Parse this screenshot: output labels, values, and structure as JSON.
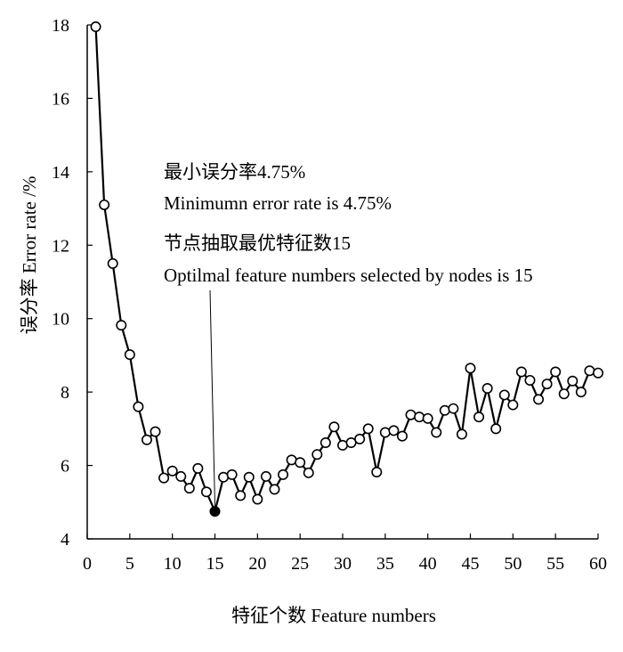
{
  "chart_data": {
    "type": "line",
    "ylabel": "误分率 Error rate /%",
    "xlabel": "特征个数 Feature numbers",
    "xlim": [
      0,
      60
    ],
    "ylim": [
      4,
      18
    ],
    "xticks": [
      0,
      5,
      10,
      15,
      20,
      25,
      30,
      35,
      40,
      45,
      50,
      55,
      60
    ],
    "yticks": [
      4,
      6,
      8,
      10,
      12,
      14,
      16,
      18
    ],
    "grid": false,
    "x": [
      1,
      2,
      3,
      4,
      5,
      6,
      7,
      8,
      9,
      10,
      11,
      12,
      13,
      14,
      15,
      16,
      17,
      18,
      19,
      20,
      21,
      22,
      23,
      24,
      25,
      26,
      27,
      28,
      29,
      30,
      31,
      32,
      33,
      34,
      35,
      36,
      37,
      38,
      39,
      40,
      41,
      42,
      43,
      44,
      45,
      46,
      47,
      48,
      49,
      50,
      51,
      52,
      53,
      54,
      55,
      56,
      57,
      58,
      59,
      60
    ],
    "y": [
      17.95,
      13.1,
      11.5,
      9.82,
      9.02,
      7.6,
      6.7,
      6.92,
      5.66,
      5.85,
      5.7,
      5.38,
      5.92,
      5.28,
      4.75,
      5.68,
      5.75,
      5.18,
      5.68,
      5.08,
      5.7,
      5.35,
      5.75,
      6.15,
      6.08,
      5.8,
      6.3,
      6.62,
      7.05,
      6.55,
      6.62,
      6.72,
      7.0,
      5.82,
      6.9,
      6.95,
      6.8,
      7.38,
      7.32,
      7.28,
      6.9,
      7.5,
      7.55,
      6.85,
      8.65,
      7.32,
      8.1,
      7.0,
      7.92,
      7.65,
      8.55,
      8.32,
      7.8,
      8.22,
      8.55,
      7.95,
      8.3,
      8.0,
      8.58,
      8.52
    ],
    "highlight_point": {
      "x": 15,
      "y": 4.75
    },
    "annotations": [
      "最小误分率4.75%",
      "Minimumn error rate  is 4.75%",
      "节点抽取最优特征数15",
      "Optilmal feature numbers selected by nodes is 15"
    ]
  }
}
